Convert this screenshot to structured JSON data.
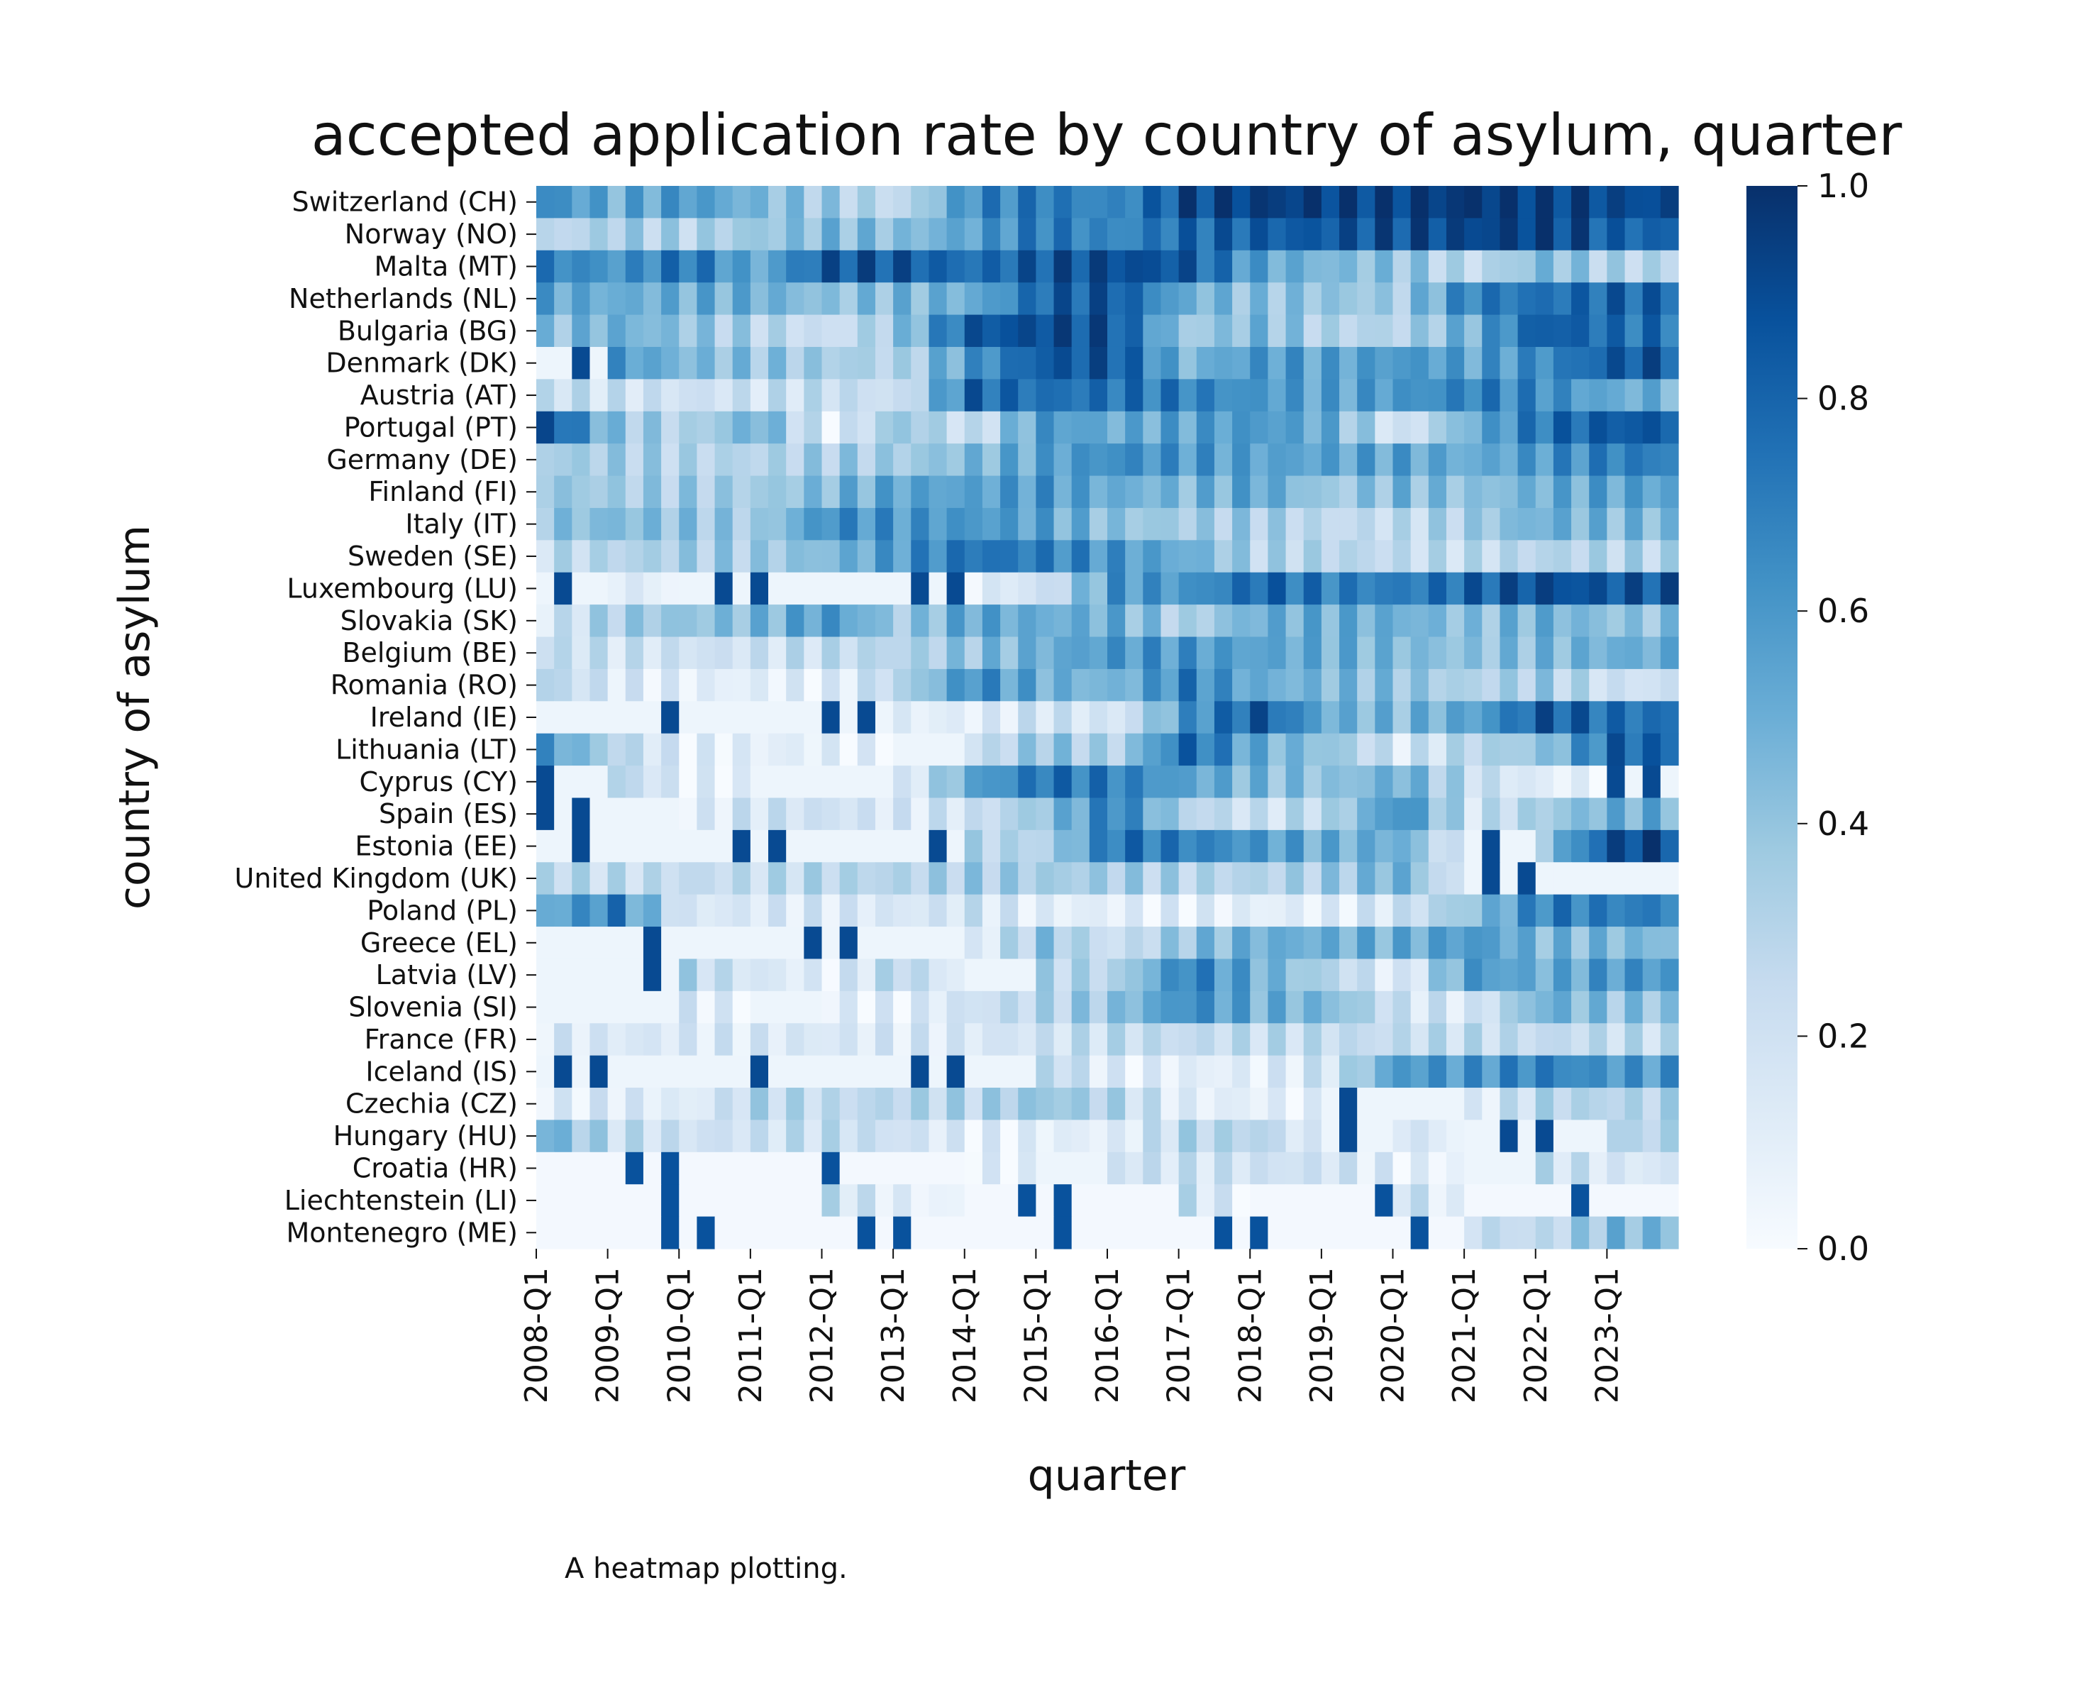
{
  "chart_data": {
    "type": "heatmap",
    "title": "accepted application rate by country of asylum, quarter",
    "xlabel": "quarter",
    "ylabel": "country of asylum",
    "x_tick_labels": [
      "2008-Q1",
      "2009-Q1",
      "2010-Q1",
      "2011-Q1",
      "2012-Q1",
      "2013-Q1",
      "2014-Q1",
      "2015-Q1",
      "2016-Q1",
      "2017-Q1",
      "2018-Q1",
      "2019-Q1",
      "2020-Q1",
      "2021-Q1",
      "2022-Q1",
      "2023-Q1"
    ],
    "quarters_start": "2008-Q1",
    "quarters_end": "2023-Q4",
    "rows": [
      "Switzerland (CH)",
      "Norway (NO)",
      "Malta (MT)",
      "Netherlands (NL)",
      "Bulgaria (BG)",
      "Denmark (DK)",
      "Austria (AT)",
      "Portugal (PT)",
      "Germany (DE)",
      "Finland (FI)",
      "Italy (IT)",
      "Sweden (SE)",
      "Luxembourg (LU)",
      "Slovakia (SK)",
      "Belgium (BE)",
      "Romania (RO)",
      "Ireland (IE)",
      "Lithuania (LT)",
      "Cyprus (CY)",
      "Spain (ES)",
      "Estonia (EE)",
      "United Kingdom (UK)",
      "Poland (PL)",
      "Greece (EL)",
      "Latvia (LV)",
      "Slovenia (SI)",
      "France (FR)",
      "Iceland (IS)",
      "Czechia (CZ)",
      "Hungary (HU)",
      "Croatia (HR)",
      "Liechtenstein (LI)",
      "Montenegro (ME)"
    ],
    "colorbar": {
      "min": 0.0,
      "max": 1.0,
      "ticks": [
        "0.0",
        "0.2",
        "0.4",
        "0.6",
        "0.8",
        "1.0"
      ],
      "colormap": "Blues"
    },
    "values_by_year": {
      "Switzerland (CH)": [
        0.65,
        0.5,
        0.6,
        0.45,
        0.35,
        0.25,
        0.65,
        0.72,
        0.65,
        0.9,
        0.95,
        0.95,
        0.95,
        0.97,
        0.97,
        0.9
      ],
      "Norway (NO)": [
        0.25,
        0.35,
        0.3,
        0.38,
        0.45,
        0.42,
        0.55,
        0.72,
        0.65,
        0.78,
        0.82,
        0.85,
        0.88,
        0.92,
        0.95,
        0.8
      ],
      "Malta (MT)": [
        0.7,
        0.6,
        0.75,
        0.5,
        0.85,
        0.85,
        0.75,
        0.85,
        0.9,
        0.85,
        0.55,
        0.45,
        0.4,
        0.25,
        0.45,
        0.3
      ],
      "Netherlands (NL)": [
        0.55,
        0.5,
        0.5,
        0.5,
        0.4,
        0.45,
        0.5,
        0.8,
        0.85,
        0.5,
        0.4,
        0.4,
        0.35,
        0.7,
        0.75,
        0.8
      ],
      "Bulgaria (BG)": [
        0.4,
        0.5,
        0.4,
        0.3,
        0.2,
        0.4,
        0.85,
        0.9,
        0.85,
        0.35,
        0.45,
        0.3,
        0.3,
        0.5,
        0.85,
        0.75
      ],
      "Denmark (DK)": [
        0.05,
        0.6,
        0.45,
        0.4,
        0.35,
        0.3,
        0.6,
        0.85,
        0.85,
        0.45,
        0.6,
        0.55,
        0.6,
        0.55,
        0.65,
        0.85
      ],
      "Austria (AT)": [
        0.25,
        0.2,
        0.2,
        0.2,
        0.25,
        0.2,
        0.8,
        0.75,
        0.75,
        0.7,
        0.6,
        0.55,
        0.6,
        0.7,
        0.65,
        0.5
      ],
      "Portugal (PT)": [
        0.9,
        0.4,
        0.3,
        0.5,
        0.1,
        0.4,
        0.2,
        0.6,
        0.5,
        0.55,
        0.6,
        0.5,
        0.15,
        0.5,
        0.75,
        0.85
      ],
      "Germany (DE)": [
        0.35,
        0.35,
        0.3,
        0.3,
        0.35,
        0.35,
        0.45,
        0.55,
        0.65,
        0.6,
        0.55,
        0.55,
        0.55,
        0.5,
        0.6,
        0.7
      ],
      "Finland (FI)": [
        0.4,
        0.35,
        0.35,
        0.35,
        0.45,
        0.55,
        0.55,
        0.6,
        0.5,
        0.45,
        0.55,
        0.35,
        0.45,
        0.4,
        0.5,
        0.55
      ],
      "Italy (IT)": [
        0.4,
        0.45,
        0.4,
        0.35,
        0.65,
        0.6,
        0.6,
        0.55,
        0.4,
        0.35,
        0.35,
        0.25,
        0.25,
        0.35,
        0.5,
        0.45
      ],
      "Sweden (SE)": [
        0.25,
        0.3,
        0.35,
        0.35,
        0.45,
        0.6,
        0.75,
        0.7,
        0.6,
        0.5,
        0.3,
        0.3,
        0.25,
        0.25,
        0.3,
        0.3
      ],
      "Luxembourg (LU)": [
        0.05,
        0.15,
        0.05,
        0.05,
        0.05,
        0.05,
        0.1,
        0.2,
        0.6,
        0.6,
        0.8,
        0.7,
        0.7,
        0.8,
        0.9,
        0.85
      ],
      "Slovakia (SK)": [
        0.15,
        0.35,
        0.4,
        0.45,
        0.6,
        0.35,
        0.55,
        0.5,
        0.5,
        0.3,
        0.5,
        0.5,
        0.5,
        0.4,
        0.5,
        0.4
      ],
      "Belgium (BE)": [
        0.25,
        0.2,
        0.2,
        0.2,
        0.25,
        0.3,
        0.4,
        0.5,
        0.6,
        0.6,
        0.55,
        0.5,
        0.45,
        0.4,
        0.45,
        0.5
      ],
      "Romania (RO)": [
        0.3,
        0.15,
        0.1,
        0.1,
        0.1,
        0.3,
        0.65,
        0.5,
        0.45,
        0.7,
        0.5,
        0.45,
        0.4,
        0.3,
        0.35,
        0.2
      ],
      "Ireland (IE)": [
        0.05,
        0.05,
        0.05,
        0.05,
        0.05,
        0.1,
        0.1,
        0.2,
        0.15,
        0.6,
        0.85,
        0.5,
        0.45,
        0.55,
        0.85,
        0.75
      ],
      "Lithuania (LT)": [
        0.6,
        0.3,
        0.1,
        0.1,
        0.1,
        0.05,
        0.2,
        0.4,
        0.3,
        0.8,
        0.5,
        0.4,
        0.15,
        0.3,
        0.4,
        0.8
      ],
      "Cyprus (CY)": [
        0.05,
        0.3,
        0.1,
        0.05,
        0.05,
        0.1,
        0.55,
        0.75,
        0.7,
        0.55,
        0.45,
        0.4,
        0.5,
        0.25,
        0.1,
        0.05
      ],
      "Spain (ES)": [
        0.05,
        0.05,
        0.1,
        0.2,
        0.2,
        0.15,
        0.2,
        0.4,
        0.7,
        0.3,
        0.2,
        0.3,
        0.65,
        0.2,
        0.35,
        0.5
      ],
      "Estonia (EE)": [
        0.05,
        0.05,
        0.05,
        0.05,
        0.05,
        0.05,
        0.3,
        0.3,
        0.75,
        0.7,
        0.6,
        0.5,
        0.5,
        0.05,
        0.4,
        0.9
      ],
      "United Kingdom (UK)": [
        0.3,
        0.25,
        0.25,
        0.25,
        0.3,
        0.3,
        0.35,
        0.35,
        0.35,
        0.3,
        0.3,
        0.35,
        0.5,
        0.05,
        0.05,
        0.05
      ],
      "Poland (PL)": [
        0.5,
        0.7,
        0.15,
        0.15,
        0.15,
        0.15,
        0.2,
        0.1,
        0.1,
        0.1,
        0.1,
        0.1,
        0.2,
        0.4,
        0.7,
        0.7
      ],
      "Greece (EL)": [
        0.05,
        0.05,
        0.05,
        0.05,
        0.05,
        0.05,
        0.1,
        0.4,
        0.2,
        0.4,
        0.5,
        0.5,
        0.5,
        0.6,
        0.45,
        0.45
      ],
      "Latvia (LV)": [
        0.05,
        0.05,
        0.3,
        0.15,
        0.1,
        0.3,
        0.05,
        0.3,
        0.3,
        0.7,
        0.5,
        0.3,
        0.1,
        0.6,
        0.5,
        0.6
      ],
      "Slovenia (SI)": [
        0.05,
        0.05,
        0.15,
        0.05,
        0.1,
        0.1,
        0.2,
        0.3,
        0.4,
        0.65,
        0.5,
        0.45,
        0.2,
        0.15,
        0.5,
        0.4
      ],
      "France (FR)": [
        0.15,
        0.15,
        0.15,
        0.15,
        0.15,
        0.15,
        0.15,
        0.2,
        0.25,
        0.25,
        0.25,
        0.25,
        0.25,
        0.25,
        0.25,
        0.25
      ],
      "Iceland (IS)": [
        0.05,
        0.05,
        0.05,
        0.05,
        0.05,
        0.05,
        0.05,
        0.3,
        0.1,
        0.1,
        0.1,
        0.2,
        0.6,
        0.6,
        0.7,
        0.6
      ],
      "Czechia (CZ)": [
        0.1,
        0.15,
        0.1,
        0.3,
        0.25,
        0.3,
        0.3,
        0.4,
        0.3,
        0.1,
        0.1,
        0.05,
        0.05,
        0.1,
        0.3,
        0.3
      ],
      "Hungary (HU)": [
        0.5,
        0.25,
        0.2,
        0.2,
        0.25,
        0.2,
        0.1,
        0.1,
        0.1,
        0.3,
        0.3,
        0.05,
        0.2,
        0.05,
        0.05,
        0.3
      ],
      "Croatia (HR)": [
        0.02,
        0.02,
        0.02,
        0.02,
        0.02,
        0.02,
        0.1,
        0.05,
        0.2,
        0.2,
        0.2,
        0.2,
        0.1,
        0.05,
        0.25,
        0.15
      ],
      "Liechtenstein (LI)": [
        0.02,
        0.02,
        0.02,
        0.02,
        0.25,
        0.1,
        0.02,
        0.02,
        0.02,
        0.25,
        0.02,
        0.02,
        0.25,
        0.02,
        0.02,
        0.02
      ],
      "Montenegro (ME)": [
        0.02,
        0.02,
        0.02,
        0.02,
        0.02,
        0.02,
        0.02,
        0.02,
        0.02,
        0.02,
        0.02,
        0.02,
        0.02,
        0.25,
        0.25,
        0.45
      ]
    }
  },
  "caption": "A heatmap plotting."
}
